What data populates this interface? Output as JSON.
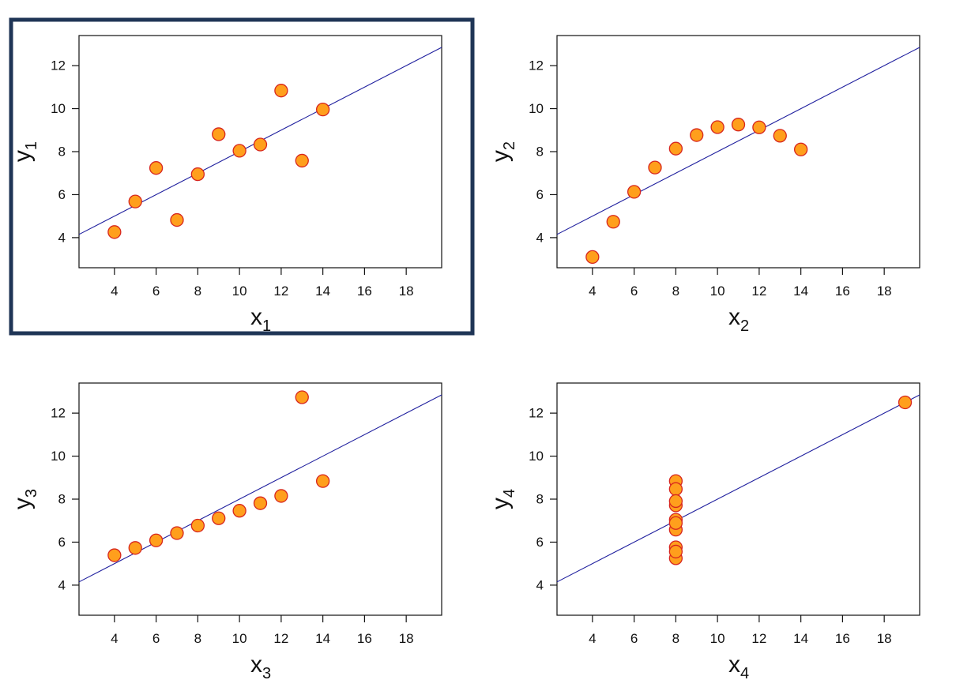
{
  "chart_data": [
    {
      "type": "scatter",
      "xlabel": "x",
      "xlabel_sub": "1",
      "ylabel": "y",
      "ylabel_sub": "1",
      "xlim": [
        2.3,
        19.7
      ],
      "ylim": [
        2.6,
        13.4
      ],
      "xticks": [
        4,
        6,
        8,
        10,
        12,
        14,
        16,
        18
      ],
      "yticks": [
        4,
        6,
        8,
        10,
        12
      ],
      "highlighted": true,
      "fit_line": {
        "slope": 0.5,
        "intercept": 3.0
      },
      "points": [
        {
          "x": 10,
          "y": 8.04
        },
        {
          "x": 8,
          "y": 6.95
        },
        {
          "x": 13,
          "y": 7.58
        },
        {
          "x": 9,
          "y": 8.81
        },
        {
          "x": 11,
          "y": 8.33
        },
        {
          "x": 14,
          "y": 9.96
        },
        {
          "x": 6,
          "y": 7.24
        },
        {
          "x": 4,
          "y": 4.26
        },
        {
          "x": 12,
          "y": 10.84
        },
        {
          "x": 7,
          "y": 4.82
        },
        {
          "x": 5,
          "y": 5.68
        }
      ]
    },
    {
      "type": "scatter",
      "xlabel": "x",
      "xlabel_sub": "2",
      "ylabel": "y",
      "ylabel_sub": "2",
      "xlim": [
        2.3,
        19.7
      ],
      "ylim": [
        2.6,
        13.4
      ],
      "xticks": [
        4,
        6,
        8,
        10,
        12,
        14,
        16,
        18
      ],
      "yticks": [
        4,
        6,
        8,
        10,
        12
      ],
      "highlighted": false,
      "fit_line": {
        "slope": 0.5,
        "intercept": 3.0
      },
      "points": [
        {
          "x": 10,
          "y": 9.14
        },
        {
          "x": 8,
          "y": 8.14
        },
        {
          "x": 13,
          "y": 8.74
        },
        {
          "x": 9,
          "y": 8.77
        },
        {
          "x": 11,
          "y": 9.26
        },
        {
          "x": 14,
          "y": 8.1
        },
        {
          "x": 6,
          "y": 6.13
        },
        {
          "x": 4,
          "y": 3.1
        },
        {
          "x": 12,
          "y": 9.13
        },
        {
          "x": 7,
          "y": 7.26
        },
        {
          "x": 5,
          "y": 4.74
        }
      ]
    },
    {
      "type": "scatter",
      "xlabel": "x",
      "xlabel_sub": "3",
      "ylabel": "y",
      "ylabel_sub": "3",
      "xlim": [
        2.3,
        19.7
      ],
      "ylim": [
        2.6,
        13.4
      ],
      "xticks": [
        4,
        6,
        8,
        10,
        12,
        14,
        16,
        18
      ],
      "yticks": [
        4,
        6,
        8,
        10,
        12
      ],
      "highlighted": false,
      "fit_line": {
        "slope": 0.5,
        "intercept": 3.0
      },
      "points": [
        {
          "x": 10,
          "y": 7.46
        },
        {
          "x": 8,
          "y": 6.77
        },
        {
          "x": 13,
          "y": 12.74
        },
        {
          "x": 9,
          "y": 7.11
        },
        {
          "x": 11,
          "y": 7.81
        },
        {
          "x": 14,
          "y": 8.84
        },
        {
          "x": 6,
          "y": 6.08
        },
        {
          "x": 4,
          "y": 5.39
        },
        {
          "x": 12,
          "y": 8.15
        },
        {
          "x": 7,
          "y": 6.42
        },
        {
          "x": 5,
          "y": 5.73
        }
      ]
    },
    {
      "type": "scatter",
      "xlabel": "x",
      "xlabel_sub": "4",
      "ylabel": "y",
      "ylabel_sub": "4",
      "xlim": [
        2.3,
        19.7
      ],
      "ylim": [
        2.6,
        13.4
      ],
      "xticks": [
        4,
        6,
        8,
        10,
        12,
        14,
        16,
        18
      ],
      "yticks": [
        4,
        6,
        8,
        10,
        12
      ],
      "highlighted": false,
      "fit_line": {
        "slope": 0.5,
        "intercept": 3.0
      },
      "points": [
        {
          "x": 8,
          "y": 6.58
        },
        {
          "x": 8,
          "y": 5.76
        },
        {
          "x": 8,
          "y": 7.71
        },
        {
          "x": 8,
          "y": 8.84
        },
        {
          "x": 8,
          "y": 8.47
        },
        {
          "x": 8,
          "y": 7.04
        },
        {
          "x": 8,
          "y": 5.25
        },
        {
          "x": 19,
          "y": 12.5
        },
        {
          "x": 8,
          "y": 5.56
        },
        {
          "x": 8,
          "y": 7.91
        },
        {
          "x": 8,
          "y": 6.89
        }
      ]
    }
  ],
  "style": {
    "point_fill": "#ff9f1c",
    "point_stroke": "#d7261e",
    "line_color": "#1f1f9e",
    "highlight_border": "#1f3556",
    "frame_color": "#111111"
  }
}
